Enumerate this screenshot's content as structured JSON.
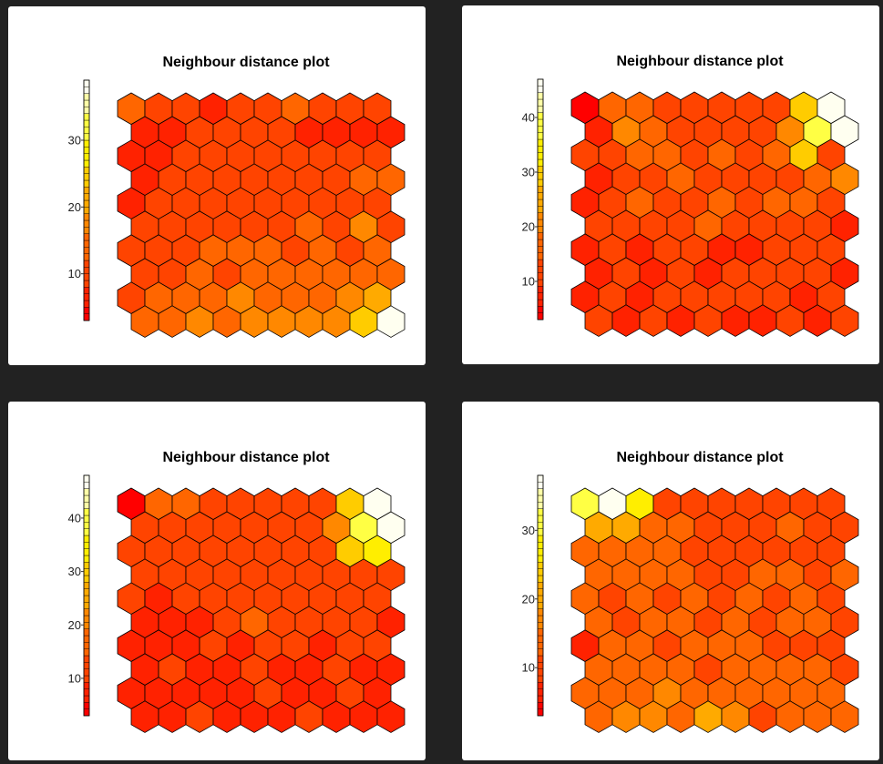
{
  "colors": {
    "page_background": "#222222",
    "panel_background": "#ffffff",
    "hex_stroke": "#000000",
    "palette": [
      "#ff0000",
      "#ff2200",
      "#ff4400",
      "#ff6600",
      "#ff8800",
      "#ffaa00",
      "#ffcc00",
      "#ffee00",
      "#ffff44",
      "#ffffa8",
      "#fffff0"
    ]
  },
  "chart_data": [
    {
      "type": "heatmap",
      "title": "Neighbour distance plot",
      "grid": {
        "rows": 10,
        "cols": 10,
        "shape": "hexagonal"
      },
      "colorbar": {
        "min": 3,
        "max": 39,
        "ticks": [
          10,
          20,
          30
        ]
      },
      "values": [
        [
          12,
          9,
          10,
          8,
          10,
          10,
          12,
          10,
          9,
          10
        ],
        [
          7,
          8,
          9,
          9,
          9,
          10,
          8,
          8,
          7,
          8
        ],
        [
          8,
          8,
          9,
          10,
          10,
          10,
          10,
          11,
          11,
          9
        ],
        [
          8,
          10,
          9,
          9,
          10,
          9,
          10,
          11,
          12,
          12
        ],
        [
          8,
          9,
          11,
          9,
          10,
          11,
          9,
          11,
          10,
          9
        ],
        [
          9,
          11,
          10,
          11,
          10,
          11,
          13,
          11,
          18,
          11
        ],
        [
          11,
          10,
          9,
          12,
          13,
          12,
          10,
          13,
          10,
          12
        ],
        [
          9,
          9,
          12,
          11,
          12,
          15,
          14,
          13,
          12,
          15
        ],
        [
          10,
          13,
          12,
          13,
          16,
          15,
          13,
          15,
          16,
          22
        ],
        [
          12,
          13,
          19,
          15,
          16,
          17,
          16,
          17,
          24,
          39
        ]
      ]
    },
    {
      "type": "heatmap",
      "title": "Neighbour distance plot",
      "grid": {
        "rows": 10,
        "cols": 10,
        "shape": "hexagonal"
      },
      "colorbar": {
        "min": 3,
        "max": 47,
        "ticks": [
          10,
          20,
          30,
          40
        ]
      },
      "values": [
        [
          5,
          14,
          16,
          12,
          12,
          13,
          12,
          11,
          28,
          46
        ],
        [
          8,
          20,
          14,
          12,
          10,
          12,
          10,
          20,
          38,
          46
        ],
        [
          10,
          12,
          14,
          16,
          12,
          14,
          12,
          16,
          30,
          12
        ],
        [
          8,
          12,
          10,
          14,
          12,
          10,
          12,
          10,
          16,
          20
        ],
        [
          8,
          10,
          14,
          12,
          12,
          16,
          12,
          18,
          16,
          12
        ],
        [
          10,
          12,
          10,
          10,
          14,
          10,
          12,
          10,
          12,
          8
        ],
        [
          8,
          10,
          8,
          10,
          12,
          8,
          8,
          10,
          10,
          12
        ],
        [
          8,
          10,
          8,
          10,
          8,
          10,
          10,
          10,
          12,
          8
        ],
        [
          8,
          10,
          8,
          12,
          10,
          12,
          10,
          10,
          8,
          10
        ],
        [
          10,
          8,
          10,
          8,
          10,
          8,
          8,
          10,
          8,
          10
        ]
      ]
    },
    {
      "type": "heatmap",
      "title": "Neighbour distance plot",
      "grid": {
        "rows": 10,
        "cols": 10,
        "shape": "hexagonal"
      },
      "colorbar": {
        "min": 3,
        "max": 48,
        "ticks": [
          10,
          20,
          30,
          40
        ]
      },
      "values": [
        [
          5,
          16,
          16,
          14,
          12,
          12,
          14,
          12,
          32,
          47
        ],
        [
          10,
          12,
          14,
          12,
          12,
          12,
          12,
          20,
          40,
          46
        ],
        [
          12,
          12,
          10,
          10,
          12,
          10,
          12,
          14,
          30,
          34
        ],
        [
          12,
          10,
          12,
          12,
          10,
          12,
          10,
          12,
          12,
          14
        ],
        [
          10,
          8,
          10,
          12,
          10,
          12,
          14,
          10,
          12,
          10
        ],
        [
          8,
          6,
          8,
          12,
          16,
          10,
          12,
          12,
          10,
          8
        ],
        [
          8,
          6,
          6,
          10,
          8,
          10,
          10,
          8,
          10,
          10
        ],
        [
          8,
          10,
          8,
          8,
          10,
          8,
          8,
          10,
          8,
          8
        ],
        [
          8,
          6,
          8,
          8,
          8,
          10,
          8,
          8,
          10,
          8
        ],
        [
          8,
          8,
          10,
          8,
          8,
          8,
          10,
          8,
          8,
          8
        ]
      ]
    },
    {
      "type": "heatmap",
      "title": "Neighbour distance plot",
      "grid": {
        "rows": 10,
        "cols": 10,
        "shape": "hexagonal"
      },
      "colorbar": {
        "min": 3,
        "max": 38,
        "ticks": [
          10,
          20,
          30
        ]
      },
      "values": [
        [
          30,
          37,
          27,
          10,
          11,
          11,
          9,
          11,
          10,
          11
        ],
        [
          20,
          22,
          14,
          12,
          10,
          10,
          10,
          12,
          10,
          10
        ],
        [
          14,
          14,
          12,
          14,
          9,
          9,
          9,
          10,
          9,
          10
        ],
        [
          14,
          12,
          14,
          12,
          10,
          10,
          12,
          12,
          10,
          12
        ],
        [
          12,
          10,
          12,
          10,
          12,
          10,
          14,
          10,
          12,
          10
        ],
        [
          12,
          10,
          12,
          12,
          10,
          12,
          10,
          14,
          12,
          10
        ],
        [
          6,
          12,
          12,
          10,
          14,
          12,
          12,
          10,
          10,
          10
        ],
        [
          12,
          14,
          12,
          12,
          10,
          14,
          12,
          12,
          14,
          10
        ],
        [
          14,
          14,
          12,
          16,
          14,
          12,
          14,
          12,
          12,
          14
        ],
        [
          12,
          16,
          16,
          14,
          22,
          18,
          10,
          12,
          14,
          12
        ]
      ]
    }
  ]
}
